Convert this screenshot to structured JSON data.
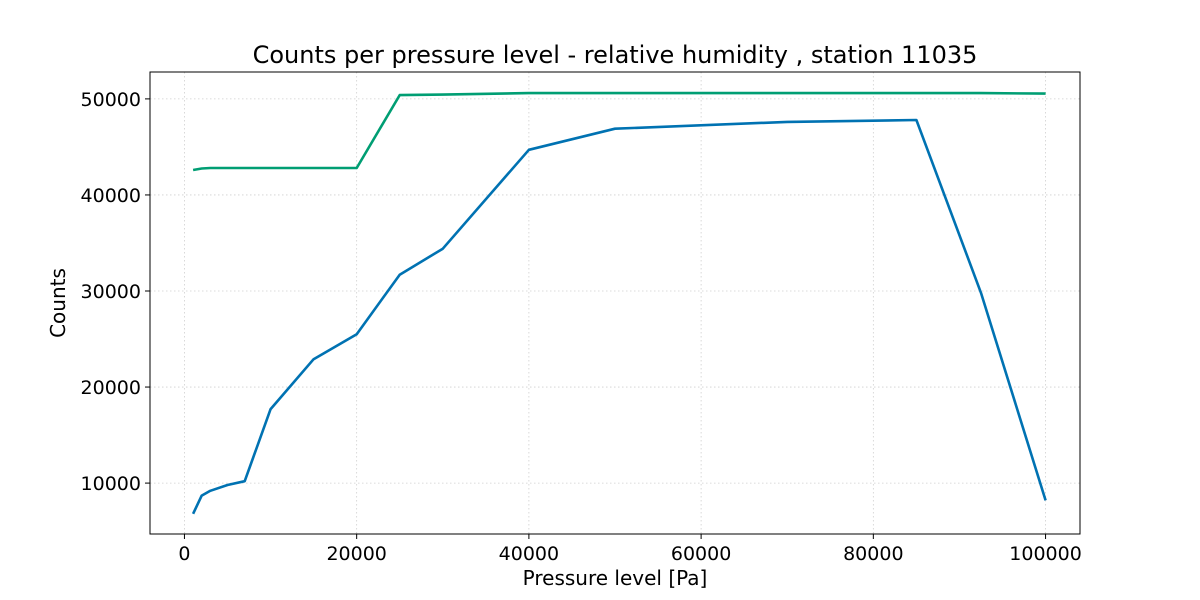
{
  "chart_data": {
    "type": "line",
    "title": "Counts per pressure level - relative humidity , station 11035",
    "xlabel": "Pressure level [Pa]",
    "ylabel": "Counts",
    "xlim": [
      -4000,
      104000
    ],
    "ylim": [
      4700,
      52800
    ],
    "x_ticks": [
      0,
      20000,
      40000,
      60000,
      80000,
      100000
    ],
    "y_ticks": [
      10000,
      20000,
      30000,
      40000,
      50000
    ],
    "grid": true,
    "legend": "none",
    "series": [
      {
        "color": "#0072b2",
        "x": [
          1000,
          2000,
          3000,
          5000,
          7000,
          10000,
          15000,
          20000,
          25000,
          30000,
          40000,
          50000,
          70000,
          85000,
          92500,
          100000
        ],
        "y": [
          6800,
          8700,
          9200,
          9800,
          10200,
          17700,
          22900,
          25500,
          31700,
          34400,
          44700,
          46900,
          47600,
          47800,
          29800,
          8200
        ]
      },
      {
        "color": "#009e73",
        "x": [
          1000,
          2000,
          3000,
          5000,
          7000,
          10000,
          15000,
          20000,
          25000,
          30000,
          40000,
          50000,
          70000,
          85000,
          92500,
          100000
        ],
        "y": [
          42600,
          42750,
          42800,
          42800,
          42800,
          42800,
          42800,
          42800,
          50400,
          50450,
          50600,
          50600,
          50600,
          50600,
          50600,
          50550
        ]
      }
    ]
  }
}
